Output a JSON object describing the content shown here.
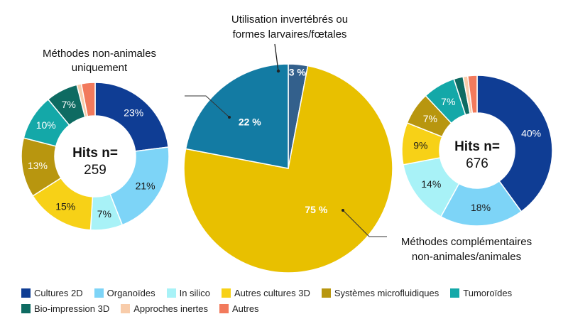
{
  "colors": {
    "cultures2d": "#0f3d94",
    "organoides": "#7dd4f7",
    "insilico": "#a8f2f7",
    "autres3d": "#f7d117",
    "microfluidiques": "#b8960f",
    "tumoroides": "#14a8a8",
    "bioimpression": "#0e6b62",
    "inertes": "#f8ccaa",
    "autres": "#f27a5c"
  },
  "chart_data": [
    {
      "id": "left",
      "type": "pie",
      "title": "Méthodes non-animales uniquement",
      "title_lines": [
        "Méthodes non-animales",
        "uniquement"
      ],
      "center_title": "Hits n=",
      "center_value": "259",
      "slices": [
        {
          "key": "cultures2d",
          "label": "Cultures 2D",
          "value": 23,
          "text": "23%"
        },
        {
          "key": "organoides",
          "label": "Organoïdes",
          "value": 21,
          "text": "21%"
        },
        {
          "key": "insilico",
          "label": "In silico",
          "value": 7,
          "text": "7%"
        },
        {
          "key": "autres3d",
          "label": "Autres cultures 3D",
          "value": 15,
          "text": "15%"
        },
        {
          "key": "microfluidiques",
          "label": "Systèmes microfluidiques",
          "value": 13,
          "text": "13%"
        },
        {
          "key": "tumoroides",
          "label": "Tumoroïdes",
          "value": 10,
          "text": "10%"
        },
        {
          "key": "bioimpression",
          "label": "Bio-impression 3D",
          "value": 7,
          "text": "7%"
        },
        {
          "key": "inertes",
          "label": "Approches inertes",
          "value": 1,
          "text": ""
        },
        {
          "key": "autres",
          "label": "Autres",
          "value": 3,
          "text": ""
        }
      ]
    },
    {
      "id": "middle",
      "type": "pie",
      "slices": [
        {
          "key": "cat_inv",
          "label": "Utilisation invertébrés ou formes larvaires/fœtales",
          "value": 3,
          "text": "3 %",
          "color": "#33608c"
        },
        {
          "key": "cat_comp",
          "label": "Méthodes complémentaires non-animales/animales",
          "value": 75,
          "text": "75 %",
          "color": "#e8c000"
        },
        {
          "key": "cat_non",
          "label": "Méthodes non-animales uniquement",
          "value": 22,
          "text": "22 %",
          "color": "#137ba3"
        }
      ],
      "annotations": [
        {
          "lines": [
            "Utilisation invertébrés ou",
            "formes larvaires/fœtales"
          ]
        },
        {
          "lines": [
            "Méthodes complémentaires",
            "non-animales/animales"
          ]
        }
      ]
    },
    {
      "id": "right",
      "type": "pie",
      "center_title": "Hits n=",
      "center_value": "676",
      "slices": [
        {
          "key": "cultures2d",
          "label": "Cultures 2D",
          "value": 40,
          "text": "40%"
        },
        {
          "key": "organoides",
          "label": "Organoïdes",
          "value": 18,
          "text": "18%"
        },
        {
          "key": "insilico",
          "label": "In silico",
          "value": 14,
          "text": "14%"
        },
        {
          "key": "autres3d",
          "label": "Autres cultures 3D",
          "value": 9,
          "text": "9%"
        },
        {
          "key": "microfluidiques",
          "label": "Systèmes microfluidiques",
          "value": 7,
          "text": "7%"
        },
        {
          "key": "tumoroides",
          "label": "Tumoroïdes",
          "value": 7,
          "text": "7%"
        },
        {
          "key": "bioimpression",
          "label": "Bio-impression 3D",
          "value": 2,
          "text": ""
        },
        {
          "key": "inertes",
          "label": "Approches inertes",
          "value": 1,
          "text": ""
        },
        {
          "key": "autres",
          "label": "Autres",
          "value": 2,
          "text": ""
        }
      ]
    }
  ],
  "legend": {
    "row1": [
      {
        "key": "cultures2d",
        "label": "Cultures 2D"
      },
      {
        "key": "organoides",
        "label": "Organoïdes"
      },
      {
        "key": "insilico",
        "label": "In silico"
      },
      {
        "key": "autres3d",
        "label": "Autres cultures 3D"
      },
      {
        "key": "microfluidiques",
        "label": "Systèmes microfluidiques"
      },
      {
        "key": "tumoroides",
        "label": "Tumoroïdes"
      }
    ],
    "row2": [
      {
        "key": "bioimpression",
        "label": "Bio-impression 3D"
      },
      {
        "key": "inertes",
        "label": "Approches inertes"
      },
      {
        "key": "autres",
        "label": "Autres"
      }
    ]
  }
}
